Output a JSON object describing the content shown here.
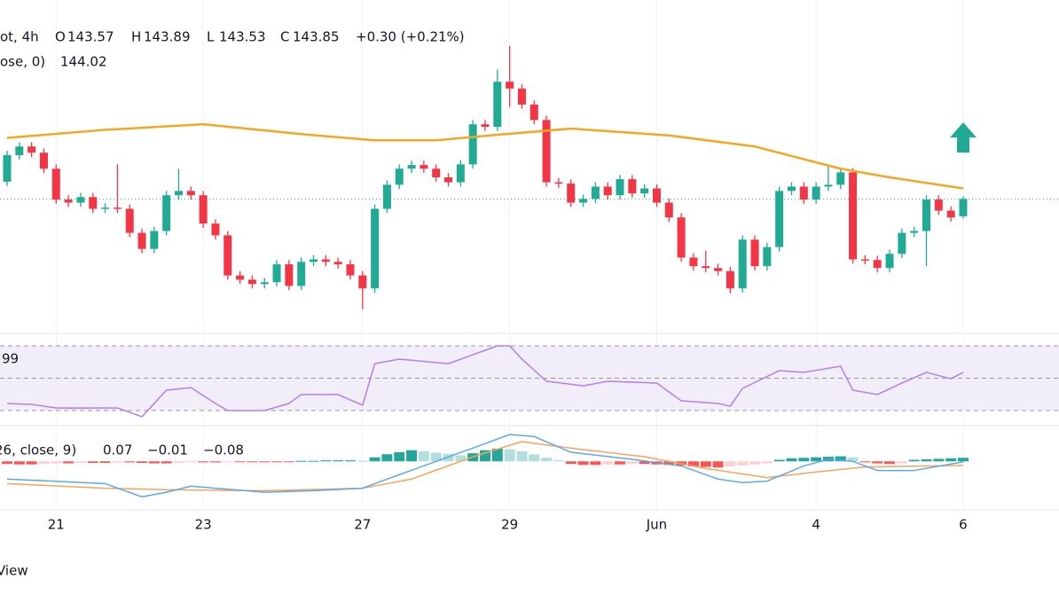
{
  "chart_data": [
    {
      "type": "candlestick",
      "header": {
        "symbol": "ot, 4h",
        "o": "O",
        "h": "H",
        "l": "L",
        "c": "C",
        "change": "+0.30 (+0.21%)"
      },
      "categories": [
        null,
        null,
        null,
        null,
        "21",
        null,
        null,
        null,
        null,
        null,
        null,
        null,
        null,
        null,
        null,
        null,
        "23",
        null,
        null,
        null,
        null,
        null,
        null,
        null,
        null,
        null,
        null,
        null,
        null,
        "27",
        null,
        null,
        null,
        null,
        null,
        null,
        null,
        null,
        null,
        null,
        null,
        "29",
        null,
        null,
        null,
        null,
        null,
        null,
        null,
        null,
        null,
        null,
        null,
        "Jun",
        null,
        null,
        null,
        null,
        null,
        null,
        null,
        null,
        null,
        null,
        null,
        null,
        "4",
        null,
        null,
        null,
        null,
        null,
        null,
        null,
        null,
        null,
        null,
        null,
        "6"
      ],
      "open": [
        144.13,
        144.56,
        144.7,
        144.6,
        144.34,
        143.84,
        143.79,
        143.88,
        143.69,
        143.71,
        143.69,
        143.3,
        143.04,
        143.33,
        143.91,
        143.98,
        143.91,
        143.45,
        143.26,
        142.61,
        142.54,
        142.47,
        142.5,
        142.79,
        142.44,
        142.83,
        142.87,
        142.83,
        142.79,
        142.61,
        142.4,
        143.69,
        144.08,
        144.34,
        144.4,
        144.34,
        144.2,
        144.12,
        144.41,
        145.06,
        145.02,
        145.75,
        145.64,
        145.38,
        145.13,
        144.12,
        144.1,
        143.79,
        143.85,
        144.05,
        143.91,
        144.17,
        143.94,
        144.02,
        143.79,
        143.55,
        142.9,
        142.76,
        142.73,
        142.68,
        142.4,
        143.19,
        142.76,
        143.07,
        143.98,
        144.05,
        143.84,
        144.05,
        144.08,
        144.28,
        142.87,
        142.86,
        142.73,
        142.96,
        143.3,
        143.33,
        143.84,
        143.66,
        143.57
      ],
      "high": [
        144.63,
        144.77,
        144.77,
        144.67,
        144.41,
        143.91,
        143.95,
        143.95,
        143.78,
        144.41,
        143.76,
        143.37,
        143.4,
        143.98,
        144.34,
        144.05,
        143.98,
        143.52,
        143.33,
        142.68,
        142.61,
        142.57,
        142.86,
        142.86,
        142.9,
        142.94,
        142.94,
        142.9,
        142.86,
        142.68,
        143.76,
        144.15,
        144.41,
        144.47,
        144.47,
        144.41,
        144.27,
        144.48,
        145.13,
        145.13,
        145.95,
        146.33,
        145.71,
        145.45,
        145.2,
        144.19,
        144.17,
        143.92,
        144.12,
        144.12,
        144.24,
        144.24,
        144.09,
        144.09,
        143.86,
        143.62,
        142.97,
        143.01,
        142.8,
        142.75,
        143.26,
        143.26,
        143.14,
        144.05,
        144.12,
        144.12,
        144.12,
        144.41,
        144.35,
        144.35,
        142.94,
        142.93,
        143.03,
        143.37,
        143.4,
        143.91,
        143.91,
        143.73,
        143.89
      ],
      "low": [
        144.06,
        144.49,
        144.53,
        144.27,
        143.77,
        143.72,
        143.72,
        143.62,
        143.62,
        143.62,
        143.23,
        142.97,
        142.97,
        143.26,
        143.84,
        143.84,
        143.38,
        143.19,
        142.54,
        142.47,
        142.4,
        142.4,
        142.43,
        142.37,
        142.37,
        142.76,
        142.76,
        142.72,
        142.54,
        142.06,
        142.33,
        143.62,
        144.01,
        144.27,
        144.27,
        144.13,
        144.05,
        144.05,
        144.34,
        144.95,
        144.95,
        145.34,
        145.31,
        145.06,
        144.05,
        144.03,
        143.72,
        143.72,
        143.78,
        143.84,
        143.84,
        143.87,
        143.87,
        143.72,
        143.48,
        142.83,
        142.69,
        142.66,
        142.61,
        142.32,
        142.33,
        142.69,
        142.69,
        143.0,
        143.91,
        143.77,
        143.77,
        143.98,
        144.01,
        142.8,
        142.79,
        142.66,
        142.66,
        142.89,
        143.23,
        142.76,
        143.59,
        143.48,
        143.53
      ],
      "close": [
        144.56,
        144.7,
        144.6,
        144.34,
        143.84,
        143.79,
        143.88,
        143.69,
        143.71,
        143.69,
        143.3,
        143.04,
        143.33,
        143.91,
        143.98,
        143.91,
        143.45,
        143.26,
        142.61,
        142.54,
        142.47,
        142.5,
        142.79,
        142.44,
        142.83,
        142.87,
        142.83,
        142.79,
        142.61,
        142.4,
        143.69,
        144.08,
        144.34,
        144.4,
        144.34,
        144.2,
        144.12,
        144.41,
        145.06,
        145.02,
        145.75,
        145.64,
        145.38,
        145.13,
        144.12,
        144.1,
        143.79,
        143.85,
        144.05,
        143.91,
        144.17,
        143.94,
        144.02,
        143.79,
        143.55,
        142.9,
        142.76,
        142.73,
        142.68,
        142.4,
        143.19,
        142.76,
        143.07,
        143.98,
        144.05,
        143.84,
        144.05,
        144.08,
        144.28,
        142.87,
        142.86,
        142.73,
        142.96,
        143.3,
        143.33,
        143.84,
        143.66,
        143.55,
        143.85
      ],
      "up_color": "#22ab94",
      "down_color": "#f23645",
      "ylim": [
        141.9,
        146.5
      ],
      "ma": {
        "legend": "ose, 0)",
        "color": "#f5a623",
        "x": [
          0,
          8,
          16,
          24,
          30,
          35,
          40,
          46,
          54,
          61,
          68,
          72,
          78
        ],
        "values": [
          144.84,
          144.97,
          145.06,
          144.9,
          144.8,
          144.8,
          144.89,
          144.99,
          144.88,
          144.7,
          144.34,
          144.2,
          144.02
        ]
      }
    },
    {
      "type": "line",
      "legend": "99",
      "color": "#b37feb",
      "band_color": "#ede7f6",
      "x": [
        0,
        2,
        4,
        9,
        11,
        13,
        15,
        17,
        18,
        21,
        23,
        24,
        27,
        29,
        30,
        32,
        36,
        38,
        40,
        41,
        42,
        44,
        47,
        49,
        53,
        55,
        58,
        59,
        60,
        63,
        65,
        68,
        69,
        71,
        73,
        75,
        77,
        78
      ],
      "values": [
        34.4,
        33.8,
        31.6,
        31.6,
        26.2,
        42.6,
        44.2,
        34.4,
        30.0,
        30.0,
        34.4,
        39.9,
        39.9,
        33.3,
        59.0,
        61.8,
        59.0,
        64.5,
        70.0,
        70.0,
        61.8,
        48.1,
        45.3,
        48.1,
        47.0,
        36.0,
        34.4,
        32.7,
        43.7,
        54.7,
        53.6,
        57.4,
        42.6,
        39.9,
        47.0,
        53.6,
        49.7,
        53.6
      ],
      "ylim": [
        30,
        70
      ],
      "yticks": [
        30,
        50,
        70
      ]
    },
    {
      "type": "macd",
      "legend": "26, close, 9)",
      "histogram": {
        "values": [
          -0.05,
          -0.06,
          -0.06,
          -0.05,
          -0.04,
          -0.04,
          -0.03,
          -0.03,
          -0.03,
          -0.02,
          -0.02,
          -0.03,
          -0.04,
          -0.04,
          -0.03,
          -0.02,
          -0.02,
          -0.02,
          -0.01,
          -0.01,
          -0.01,
          -0.01,
          -0.01,
          -0.01,
          0.01,
          0.01,
          0.02,
          0.02,
          0.02,
          0.01,
          0.08,
          0.14,
          0.18,
          0.22,
          0.2,
          0.17,
          0.15,
          0.12,
          0.16,
          0.22,
          0.25,
          0.24,
          0.2,
          0.14,
          0.07,
          0.02,
          -0.05,
          -0.07,
          -0.07,
          -0.06,
          -0.06,
          -0.05,
          -0.05,
          -0.06,
          -0.07,
          -0.08,
          -0.1,
          -0.11,
          -0.12,
          -0.1,
          -0.08,
          -0.06,
          -0.04,
          0.03,
          0.06,
          0.07,
          0.08,
          0.09,
          0.1,
          0.08,
          -0.02,
          -0.04,
          -0.05,
          -0.04,
          0.03,
          0.04,
          0.05,
          0.06,
          0.07
        ],
        "colors": {
          "up_grow": "#26a69a",
          "up_fall": "#b2dfdb",
          "down_grow": "#ff5252",
          "down_fall": "#ffcdd2"
        }
      },
      "macd": {
        "color": "#5aa9e6",
        "legend_value": "−0.01",
        "x": [
          0,
          8,
          11,
          13,
          15,
          17,
          21,
          25,
          29,
          31,
          35,
          39,
          41,
          43,
          46,
          51,
          55,
          58,
          60,
          62,
          65,
          67,
          69,
          71,
          74,
          78
        ],
        "values": [
          -0.35,
          -0.44,
          -0.7,
          -0.61,
          -0.49,
          -0.53,
          -0.61,
          -0.58,
          -0.53,
          -0.35,
          0.0,
          0.35,
          0.53,
          0.49,
          0.18,
          0.04,
          -0.09,
          -0.35,
          -0.42,
          -0.39,
          -0.09,
          0.04,
          0.0,
          -0.18,
          -0.18,
          -0.01
        ]
      },
      "signal": {
        "color": "#f7a35c",
        "legend_value": "−0.08",
        "x": [
          0,
          8,
          13,
          21,
          29,
          33,
          38,
          42,
          46,
          52,
          57,
          62,
          66,
          70,
          78
        ],
        "values": [
          -0.44,
          -0.53,
          -0.56,
          -0.58,
          -0.53,
          -0.35,
          0.09,
          0.39,
          0.26,
          0.09,
          -0.14,
          -0.32,
          -0.21,
          -0.11,
          -0.08
        ]
      },
      "ylim": [
        -0.8,
        0.6
      ]
    }
  ],
  "footer": "View"
}
